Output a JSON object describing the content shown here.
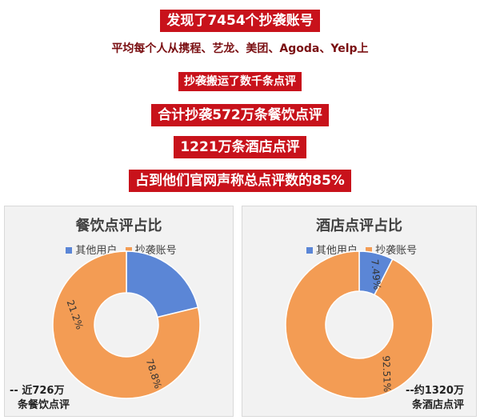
{
  "headlines": [
    {
      "text": "发现了7454个抄袭账号",
      "style": "red"
    },
    {
      "text": "平均每个人从携程、艺龙、美团、Agoda、Yelp上",
      "style": "plain"
    },
    {
      "text": "抄袭搬运了数千条点评",
      "style": "small"
    },
    {
      "text": "合计抄袭572万条餐饮点评",
      "style": "red"
    },
    {
      "text": "1221万条酒店点评",
      "style": "red"
    },
    {
      "text": "占到他们官网声称总点评数的85%",
      "style": "red"
    }
  ],
  "colors": {
    "headline_bg": "#c8121b",
    "blue": "#5b86d6",
    "orange": "#f39c54",
    "panel_bg": "#f2f2f2"
  },
  "chart_data": [
    {
      "type": "pie",
      "subtype": "donut",
      "title": "餐饮点评占比",
      "categories": [
        "其他用户",
        "抄袭账号"
      ],
      "values": [
        21.2,
        78.8
      ],
      "data_labels": [
        "21.2%",
        "78.8%"
      ],
      "legend": "top",
      "annotation": [
        "-- 近726万",
        "条餐饮点评"
      ]
    },
    {
      "type": "pie",
      "subtype": "donut",
      "title": "酒店点评占比",
      "categories": [
        "其他用户",
        "抄袭账号"
      ],
      "values": [
        7.49,
        92.51
      ],
      "data_labels": [
        "7.49%",
        "92.51%"
      ],
      "legend": "top",
      "annotation": [
        "--约1320万",
        "条酒店点评"
      ]
    }
  ]
}
